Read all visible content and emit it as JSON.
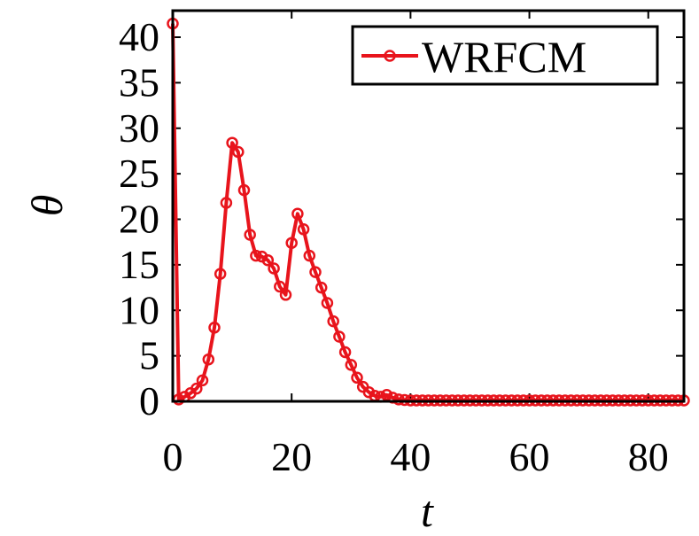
{
  "chart_data": {
    "type": "line",
    "xlabel": "t",
    "ylabel": "θ",
    "xlim": [
      0,
      86
    ],
    "ylim": [
      0,
      42
    ],
    "xticks": [
      "0",
      "20",
      "40",
      "60",
      "80"
    ],
    "yticks": [
      "0",
      "5",
      "10",
      "15",
      "20",
      "25",
      "30",
      "35",
      "40"
    ],
    "grid": false,
    "legend_position": "top-right",
    "series": [
      {
        "name": "WRFCM",
        "color": "#e8141c",
        "marker": "open-circle",
        "x": [
          0,
          1,
          2,
          3,
          4,
          5,
          6,
          7,
          8,
          9,
          10,
          11,
          12,
          13,
          14,
          15,
          16,
          17,
          18,
          19,
          20,
          21,
          22,
          23,
          24,
          25,
          26,
          27,
          28,
          29,
          30,
          31,
          32,
          33,
          34,
          35,
          36,
          37,
          38,
          39,
          40,
          41,
          42,
          43,
          44,
          45,
          46,
          47,
          48,
          49,
          50,
          51,
          52,
          53,
          54,
          55,
          56,
          57,
          58,
          59,
          60,
          61,
          62,
          63,
          64,
          65,
          66,
          67,
          68,
          69,
          70,
          71,
          72,
          73,
          74,
          75,
          76,
          77,
          78,
          79,
          80,
          81,
          82,
          83,
          84,
          85,
          86
        ],
        "y": [
          41.5,
          0.2,
          0.5,
          0.9,
          1.4,
          2.3,
          4.6,
          8.1,
          14.0,
          21.8,
          28.4,
          27.4,
          23.2,
          18.3,
          16.0,
          15.9,
          15.5,
          14.6,
          12.6,
          11.7,
          17.4,
          20.6,
          18.9,
          16.0,
          14.2,
          12.5,
          10.8,
          8.8,
          7.1,
          5.4,
          4.0,
          2.6,
          1.6,
          1.0,
          0.6,
          0.5,
          0.7,
          0.4,
          0.2,
          0.15,
          0.1,
          0.1,
          0.1,
          0.1,
          0.1,
          0.1,
          0.1,
          0.1,
          0.1,
          0.1,
          0.1,
          0.1,
          0.1,
          0.1,
          0.1,
          0.1,
          0.1,
          0.1,
          0.1,
          0.1,
          0.1,
          0.1,
          0.1,
          0.1,
          0.1,
          0.1,
          0.1,
          0.1,
          0.1,
          0.1,
          0.1,
          0.1,
          0.1,
          0.1,
          0.1,
          0.1,
          0.1,
          0.1,
          0.1,
          0.1,
          0.1,
          0.1,
          0.1,
          0.1,
          0.1,
          0.1,
          0.1
        ]
      }
    ]
  }
}
